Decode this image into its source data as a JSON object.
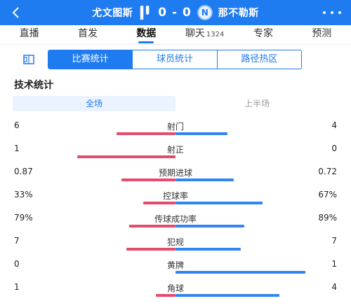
{
  "header": {
    "home_team": "尤文图斯",
    "away_team": "那不勒斯",
    "score": "0 - 0",
    "away_logo_letter": "N",
    "bg_color": "#1f7bf0"
  },
  "tabs": [
    {
      "label": "直播"
    },
    {
      "label": "首发"
    },
    {
      "label": "数据",
      "active": true
    },
    {
      "label": "聊天",
      "count": "1324"
    },
    {
      "label": "专家"
    },
    {
      "label": "预测"
    }
  ],
  "subtabs": [
    "比赛统计",
    "球员统计",
    "路径热区"
  ],
  "section_title": "技术统计",
  "period": {
    "full": "全场",
    "first_half": "上半场"
  },
  "colors": {
    "home": "#e54b6c",
    "away": "#2f86f2",
    "accent": "#1f7bf0"
  },
  "stats": [
    {
      "label": "射门",
      "home": "6",
      "away": "4",
      "home_frac": 0.6,
      "away_frac": 0.4
    },
    {
      "label": "射正",
      "home": "1",
      "away": "0",
      "home_frac": 1.0,
      "away_frac": 0.0
    },
    {
      "label": "预期进球",
      "home": "0.87",
      "away": "0.72",
      "home_frac": 0.55,
      "away_frac": 0.45
    },
    {
      "label": "控球率",
      "home": "33%",
      "away": "67%",
      "home_frac": 0.33,
      "away_frac": 0.67
    },
    {
      "label": "传球成功率",
      "home": "79%",
      "away": "89%",
      "home_frac": 0.47,
      "away_frac": 0.53
    },
    {
      "label": "犯规",
      "home": "7",
      "away": "7",
      "home_frac": 0.5,
      "away_frac": 0.5
    },
    {
      "label": "黄牌",
      "home": "0",
      "away": "1",
      "home_frac": 0.0,
      "away_frac": 1.0
    },
    {
      "label": "角球",
      "home": "1",
      "away": "4",
      "home_frac": 0.2,
      "away_frac": 0.8
    }
  ]
}
